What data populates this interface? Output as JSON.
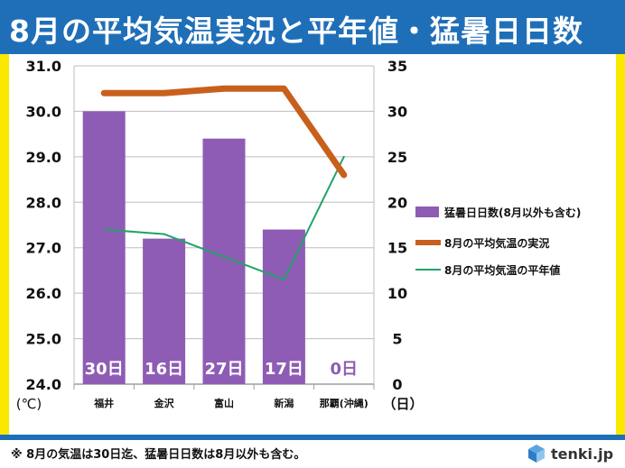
{
  "title": "8月の平均気温実況と平年値・猛暑日日数",
  "footnote": "※ 8月の気温は30日迄、猛暑日日数は8月以外も含む。",
  "logo": {
    "text": "tenki.jp",
    "icon": "tenki-cube-icon"
  },
  "colors": {
    "bar": "#8e5cb5",
    "actual": "#c8601c",
    "normal": "#22a36a",
    "title_bg": "#1f6fb8",
    "frame": "#fbe800"
  },
  "chart_data": {
    "type": "bar",
    "categories": [
      "福井",
      "金沢",
      "富山",
      "新潟",
      "那覇(沖縄)"
    ],
    "left_axis": {
      "label": "(℃)",
      "range": [
        24.0,
        31.0
      ],
      "ticks": [
        "24.0",
        "25.0",
        "26.0",
        "27.0",
        "28.0",
        "29.0",
        "30.0",
        "31.0"
      ]
    },
    "right_axis": {
      "label": "（日）",
      "range": [
        0,
        35
      ],
      "ticks": [
        "0",
        "5",
        "10",
        "15",
        "20",
        "25",
        "30",
        "35"
      ]
    },
    "series": [
      {
        "name": "猛暑日日数(8月以外も含む)",
        "kind": "bar",
        "axis": "right",
        "values": [
          30,
          16,
          27,
          17,
          0
        ],
        "labels": [
          "30日",
          "16日",
          "27日",
          "17日",
          "0日"
        ]
      },
      {
        "name": "8月の平均気温の実況",
        "kind": "line",
        "axis": "left",
        "values": [
          30.4,
          30.4,
          30.5,
          30.5,
          28.6
        ]
      },
      {
        "name": "8月の平均気温の平年値",
        "kind": "line",
        "axis": "left",
        "values": [
          27.4,
          27.3,
          26.8,
          26.3,
          29.0
        ]
      }
    ],
    "legend_position": "right",
    "grid": true
  }
}
